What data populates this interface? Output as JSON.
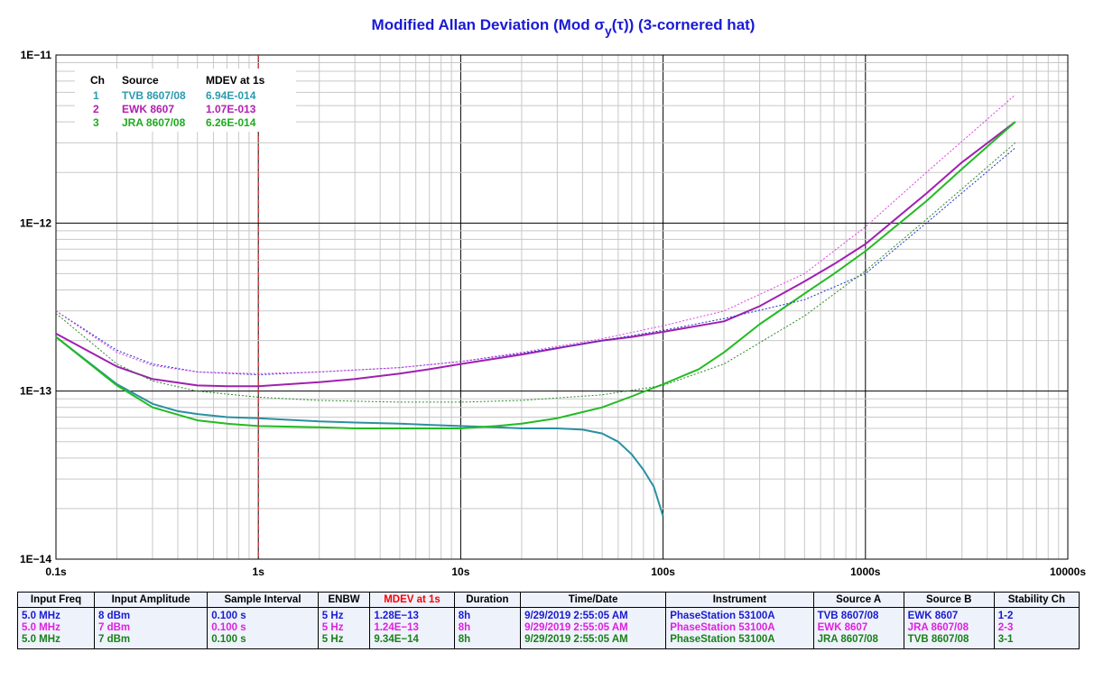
{
  "chart_data": {
    "type": "line",
    "title": "Modified Allan Deviation (Mod σ",
    "title_sub": "y",
    "title_paren": "(τ)) (3-cornered hat)",
    "x_scale": "log",
    "y_scale": "log",
    "xlim": [
      0.1,
      10000
    ],
    "ylim": [
      1e-14,
      1e-11
    ],
    "x_tick_labels": [
      {
        "v": 0.1,
        "label": "0.1s"
      },
      {
        "v": 1,
        "label": "1s"
      },
      {
        "v": 10,
        "label": "10s"
      },
      {
        "v": 100,
        "label": "100s"
      },
      {
        "v": 1000,
        "label": "1000s"
      },
      {
        "v": 10000,
        "label": "10000s"
      }
    ],
    "y_tick_labels": [
      {
        "v": 1e-14,
        "label": "1E−14"
      },
      {
        "v": 1e-13,
        "label": "1E−13"
      },
      {
        "v": 1e-12,
        "label": "1E−12"
      },
      {
        "v": 1e-11,
        "label": "1E−11"
      }
    ],
    "grid": true,
    "marker_x": 1,
    "legend": {
      "position": "top-left",
      "headers": [
        "Ch",
        "Source",
        "MDEV at 1s"
      ],
      "rows": [
        {
          "ch": "1",
          "source": "TVB 8607/08",
          "mdev": "6.94E-014",
          "color": "#2b9ab0"
        },
        {
          "ch": "2",
          "source": "EWK 8607",
          "mdev": "1.07E-013",
          "color": "#b020b0"
        },
        {
          "ch": "3",
          "source": "JRA 8607/08",
          "mdev": "6.26E-014",
          "color": "#1faa1f"
        }
      ]
    },
    "series": [
      {
        "name": "TVB 8607/08",
        "color": "#2b8fa3",
        "style": "solid",
        "x": [
          0.1,
          0.2,
          0.3,
          0.4,
          0.5,
          0.7,
          1,
          2,
          3,
          5,
          7,
          10,
          15,
          20,
          30,
          40,
          50,
          60,
          70,
          80,
          90,
          100
        ],
        "y": [
          2.1e-13,
          1.1e-13,
          8.4e-14,
          7.6e-14,
          7.3e-14,
          7e-14,
          6.9e-14,
          6.6e-14,
          6.5e-14,
          6.4e-14,
          6.3e-14,
          6.2e-14,
          6.1e-14,
          6e-14,
          6e-14,
          5.9e-14,
          5.6e-14,
          5e-14,
          4.2e-14,
          3.4e-14,
          2.7e-14,
          1.8e-14
        ]
      },
      {
        "name": "EWK 8607",
        "color": "#a020b0",
        "style": "solid",
        "x": [
          0.1,
          0.2,
          0.3,
          0.5,
          0.7,
          1,
          2,
          3,
          5,
          7,
          10,
          20,
          30,
          50,
          70,
          100,
          200,
          300,
          500,
          700,
          1000,
          2000,
          3000,
          5500
        ],
        "y": [
          2.2e-13,
          1.4e-13,
          1.18e-13,
          1.08e-13,
          1.07e-13,
          1.07e-13,
          1.13e-13,
          1.18e-13,
          1.27e-13,
          1.35e-13,
          1.45e-13,
          1.65e-13,
          1.8e-13,
          2e-13,
          2.1e-13,
          2.25e-13,
          2.6e-13,
          3.2e-13,
          4.5e-13,
          5.7e-13,
          7.5e-13,
          1.5e-12,
          2.3e-12,
          4e-12
        ]
      },
      {
        "name": "JRA 8607/08",
        "color": "#22bb22",
        "style": "solid",
        "x": [
          0.1,
          0.2,
          0.3,
          0.5,
          0.7,
          1,
          2,
          3,
          5,
          7,
          10,
          15,
          20,
          30,
          50,
          70,
          100,
          150,
          200,
          300,
          500,
          700,
          1000,
          2000,
          3000,
          5500
        ],
        "y": [
          2.1e-13,
          1.08e-13,
          8e-14,
          6.7e-14,
          6.4e-14,
          6.2e-14,
          6.1e-14,
          6e-14,
          6e-14,
          6e-14,
          6e-14,
          6.2e-14,
          6.4e-14,
          6.9e-14,
          8e-14,
          9.3e-14,
          1.1e-13,
          1.35e-13,
          1.7e-13,
          2.5e-13,
          3.8e-13,
          5e-13,
          6.8e-13,
          1.35e-12,
          2.1e-12,
          4e-12
        ]
      },
      {
        "name": "1-2",
        "color": "#2030d0",
        "style": "dotted",
        "x": [
          0.1,
          0.2,
          0.3,
          0.5,
          1,
          2,
          5,
          10,
          20,
          50,
          100,
          200,
          500,
          1000,
          2000,
          5500
        ],
        "y": [
          3e-13,
          1.75e-13,
          1.45e-13,
          1.3e-13,
          1.25e-13,
          1.3e-13,
          1.38e-13,
          1.5e-13,
          1.68e-13,
          2e-13,
          2.3e-13,
          2.7e-13,
          3.5e-13,
          5e-13,
          1e-12,
          2.8e-12
        ]
      },
      {
        "name": "2-3",
        "color": "#e040e0",
        "style": "dotted",
        "x": [
          0.1,
          0.2,
          0.3,
          0.5,
          1,
          2,
          5,
          10,
          20,
          50,
          100,
          200,
          500,
          1000,
          2000,
          5500
        ],
        "y": [
          3e-13,
          1.7e-13,
          1.42e-13,
          1.3e-13,
          1.27e-13,
          1.3e-13,
          1.38e-13,
          1.5e-13,
          1.7e-13,
          2.05e-13,
          2.45e-13,
          3e-13,
          5e-13,
          9.5e-13,
          2e-12,
          5.8e-12
        ]
      },
      {
        "name": "3-1",
        "color": "#2a8a2a",
        "style": "dotted",
        "x": [
          0.1,
          0.2,
          0.3,
          0.5,
          1,
          2,
          5,
          10,
          20,
          50,
          100,
          200,
          500,
          1000,
          2000,
          5500
        ],
        "y": [
          2.9e-13,
          1.45e-13,
          1.15e-13,
          1e-13,
          9.2e-14,
          8.8e-14,
          8.6e-14,
          8.6e-14,
          8.8e-14,
          9.5e-14,
          1.08e-13,
          1.45e-13,
          2.8e-13,
          5.2e-13,
          1.05e-12,
          3e-12
        ]
      }
    ]
  },
  "info_table": {
    "headers": [
      "Input Freq",
      "Input Amplitude",
      "Sample Interval",
      "ENBW",
      "MDEV at 1s",
      "Duration",
      "Time/Date",
      "Instrument",
      "Source A",
      "Source B",
      "Stability Ch"
    ],
    "header_colors": [
      "#000000",
      "#000000",
      "#000000",
      "#000000",
      "#ff0000",
      "#000000",
      "#000000",
      "#000000",
      "#000000",
      "#000000",
      "#000000"
    ],
    "row_colors": [
      "#1a1ad0",
      "#e020e0",
      "#1a801a"
    ],
    "rows": [
      [
        "5.0 MHz",
        "8 dBm",
        "0.100 s",
        "5 Hz",
        "1.28E−13",
        "8h",
        "9/29/2019 2:55:05 AM",
        "PhaseStation 53100A",
        "TVB 8607/08",
        "EWK 8607",
        "1-2"
      ],
      [
        "5.0 MHz",
        "7 dBm",
        "0.100 s",
        "5 Hz",
        "1.24E−13",
        "8h",
        "9/29/2019 2:55:05 AM",
        "PhaseStation 53100A",
        "EWK 8607",
        "JRA 8607/08",
        "2-3"
      ],
      [
        "5.0 MHz",
        "7 dBm",
        "0.100 s",
        "5 Hz",
        "9.34E−14",
        "8h",
        "9/29/2019 2:55:05 AM",
        "PhaseStation 53100A",
        "JRA 8607/08",
        "TVB 8607/08",
        "3-1"
      ]
    ]
  }
}
